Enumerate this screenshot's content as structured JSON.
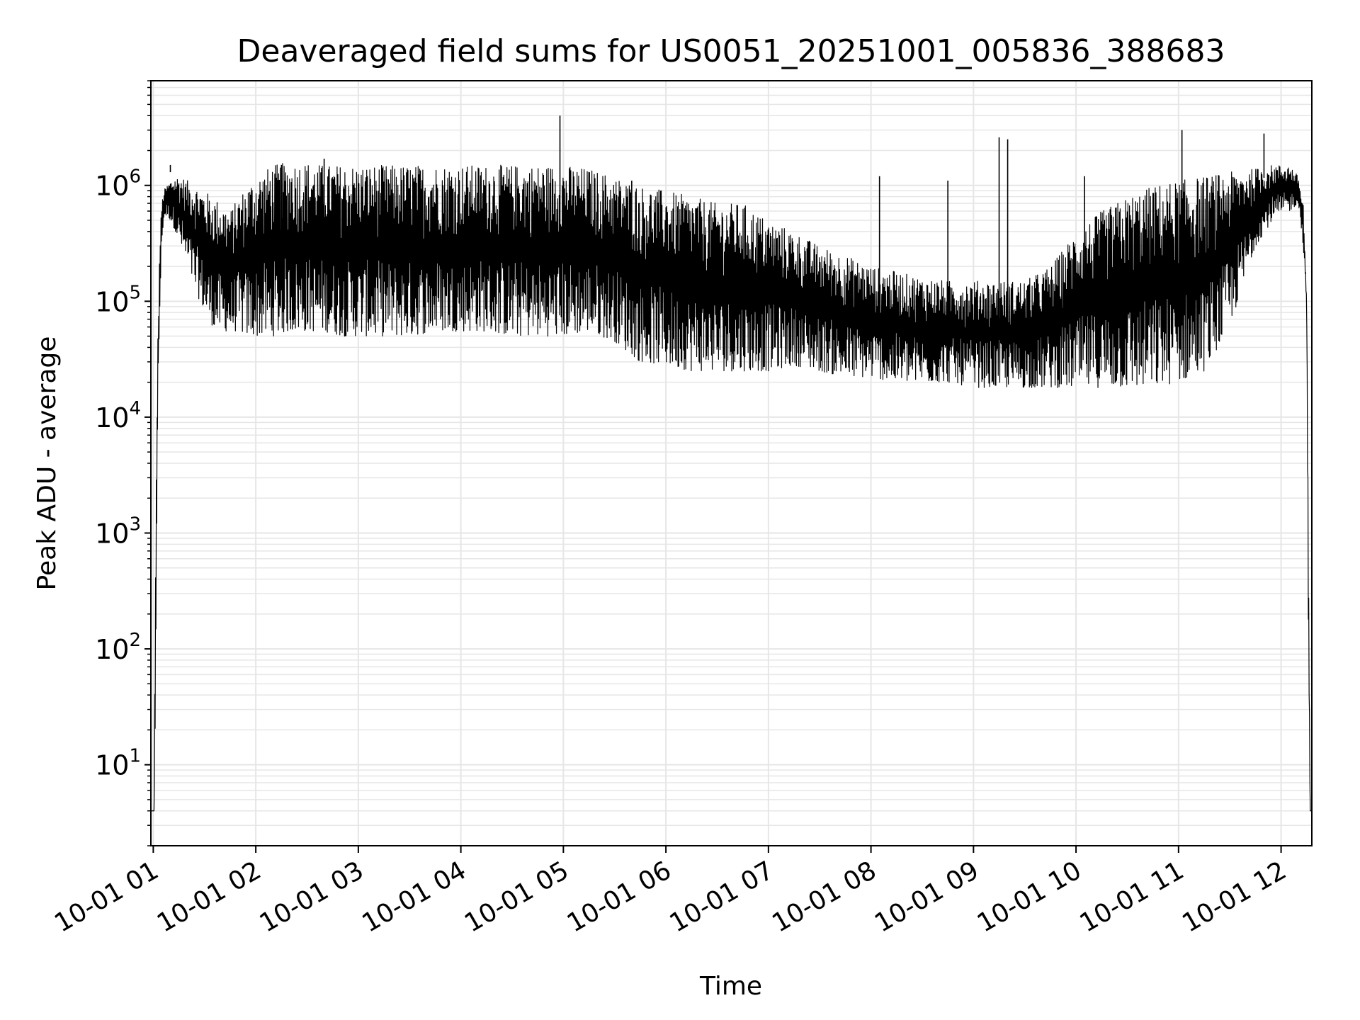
{
  "chart_data": {
    "type": "line",
    "title": "Deaveraged field sums for US0051_20251001_005836_388683",
    "xlabel": "Time",
    "ylabel": "Peak ADU - average",
    "yscale": "log",
    "ylim": [
      2,
      8000000
    ],
    "xlim": [
      "10-01 00:58:36",
      "10-01 12:18:00"
    ],
    "grid": true,
    "line_color": "#000000",
    "grid_color": "#e6e6e6",
    "x_tick_labels": [
      "10-01 01",
      "10-01 02",
      "10-01 03",
      "10-01 04",
      "10-01 05",
      "10-01 06",
      "10-01 07",
      "10-01 08",
      "10-01 09",
      "10-01 10",
      "10-01 11",
      "10-01 12"
    ],
    "y_ticks": [
      {
        "base": "10",
        "exp": "1",
        "value": 10
      },
      {
        "base": "10",
        "exp": "2",
        "value": 100
      },
      {
        "base": "10",
        "exp": "3",
        "value": 1000
      },
      {
        "base": "10",
        "exp": "4",
        "value": 10000
      },
      {
        "base": "10",
        "exp": "5",
        "value": 100000
      },
      {
        "base": "10",
        "exp": "6",
        "value": 1000000
      }
    ],
    "series": [
      {
        "name": "",
        "x": [
          "10-01 00:58:36",
          "10-01 01:00:30",
          "10-01 01:01:00",
          "10-01 01:02:00",
          "10-01 01:03:00",
          "10-01 01:04:00",
          "10-01 01:05:00",
          "10-01 01:06:00",
          "10-01 01:08:00",
          "10-01 01:10:00",
          "10-01 01:13:00",
          "10-01 01:16:00",
          "10-01 01:20:00",
          "10-01 01:25:00",
          "10-01 01:30:00",
          "10-01 01:35:00",
          "10-01 01:40:00",
          "10-01 01:45:00",
          "10-01 01:50:00",
          "10-01 01:55:00",
          "10-01 02:00:00",
          "10-01 02:10:00",
          "10-01 02:20:00",
          "10-01 02:30:00",
          "10-01 02:40:00",
          "10-01 02:50:00",
          "10-01 03:00:00",
          "10-01 03:15:00",
          "10-01 03:30:00",
          "10-01 03:45:00",
          "10-01 04:00:00",
          "10-01 04:15:00",
          "10-01 04:30:00",
          "10-01 04:45:00",
          "10-01 04:58:00",
          "10-01 05:00:00",
          "10-01 05:15:00",
          "10-01 05:30:00",
          "10-01 05:45:00",
          "10-01 06:00:00",
          "10-01 06:15:00",
          "10-01 06:30:00",
          "10-01 06:45:00",
          "10-01 07:00:00",
          "10-01 07:15:00",
          "10-01 07:30:00",
          "10-01 07:45:00",
          "10-01 08:00:00",
          "10-01 08:15:00",
          "10-01 08:30:00",
          "10-01 08:45:00",
          "10-01 09:00:00",
          "10-01 09:15:00",
          "10-01 09:30:00",
          "10-01 09:45:00",
          "10-01 10:00:00",
          "10-01 10:15:00",
          "10-01 10:30:00",
          "10-01 10:45:00",
          "10-01 11:00:00",
          "10-01 11:15:00",
          "10-01 11:30:00",
          "10-01 11:45:00",
          "10-01 11:55:00",
          "10-01 12:05:00",
          "10-01 12:10:00",
          "10-01 12:13:00",
          "10-01 12:15:00",
          "10-01 12:16:00",
          "10-01 12:17:00",
          "10-01 12:18:00"
        ],
        "low": [
          4,
          4,
          10,
          1000,
          20000,
          100000,
          300000,
          500000,
          550000,
          500000,
          400000,
          300000,
          200000,
          120000,
          80000,
          60000,
          55000,
          55000,
          55000,
          50000,
          50000,
          50000,
          55000,
          55000,
          55000,
          50000,
          50000,
          50000,
          50000,
          55000,
          55000,
          55000,
          50000,
          50000,
          50000,
          50000,
          55000,
          45000,
          30000,
          28000,
          25000,
          25000,
          25000,
          25000,
          28000,
          25000,
          22000,
          22000,
          20000,
          20000,
          20000,
          18000,
          18000,
          18000,
          18000,
          18000,
          18000,
          18000,
          18000,
          20000,
          25000,
          60000,
          300000,
          500000,
          600000,
          700000,
          300000,
          80000,
          100,
          4,
          4
        ],
        "high": [
          4,
          4,
          100,
          10000,
          100000,
          400000,
          700000,
          900000,
          1000000,
          1100000,
          1200000,
          1200000,
          1100000,
          1000000,
          900000,
          800000,
          700000,
          600000,
          800000,
          1000000,
          1200000,
          1500000,
          1600000,
          1600000,
          1500000,
          1500000,
          1500000,
          1500000,
          1500000,
          1500000,
          1500000,
          1500000,
          1500000,
          1500000,
          1500000,
          1500000,
          1400000,
          1200000,
          1000000,
          900000,
          800000,
          700000,
          700000,
          500000,
          400000,
          300000,
          250000,
          200000,
          180000,
          160000,
          150000,
          150000,
          150000,
          150000,
          200000,
          400000,
          600000,
          800000,
          1000000,
          1100000,
          1200000,
          1300000,
          1400000,
          1500000,
          1500000,
          1200000,
          700000,
          100000,
          1000,
          4,
          4
        ],
        "spikes": [
          {
            "x": "10-01 01:10:00",
            "y": 1300000
          },
          {
            "x": "10-01 02:15:00",
            "y": 1500000
          },
          {
            "x": "10-01 02:40:00",
            "y": 1700000
          },
          {
            "x": "10-01 04:58:00",
            "y": 4000000
          },
          {
            "x": "10-01 05:40:00",
            "y": 1100000
          },
          {
            "x": "10-01 08:05:00",
            "y": 1200000
          },
          {
            "x": "10-01 08:45:00",
            "y": 1100000
          },
          {
            "x": "10-01 09:15:00",
            "y": 2600000
          },
          {
            "x": "10-01 09:20:00",
            "y": 2500000
          },
          {
            "x": "10-01 10:05:00",
            "y": 1200000
          },
          {
            "x": "10-01 11:02:00",
            "y": 3000000
          },
          {
            "x": "10-01 11:50:00",
            "y": 2800000
          }
        ]
      }
    ]
  }
}
